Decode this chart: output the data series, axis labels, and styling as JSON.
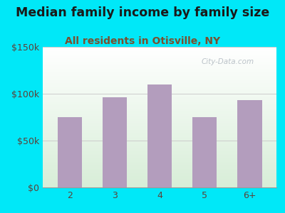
{
  "title": "Median family income by family size",
  "subtitle": "All residents in Otisville, NY",
  "categories": [
    "2",
    "3",
    "4",
    "5",
    "6+"
  ],
  "values": [
    75000,
    96000,
    110000,
    75000,
    93000
  ],
  "bar_color": "#b39dbd",
  "ylim": [
    0,
    150000
  ],
  "yticks": [
    0,
    50000,
    100000,
    150000
  ],
  "ytick_labels": [
    "$0",
    "$50k",
    "$100k",
    "$150k"
  ],
  "background_outer": "#00e8f8",
  "background_inner_topleft": "#ffffff",
  "background_inner_topright": "#d4ecd4",
  "background_inner_bottom": "#ffffff",
  "title_color": "#1a1a1a",
  "subtitle_color": "#7b4f2e",
  "tick_color": "#5d4037",
  "watermark": "City-Data.com",
  "title_fontsize": 12.5,
  "subtitle_fontsize": 10,
  "grid_color": "#cccccc"
}
